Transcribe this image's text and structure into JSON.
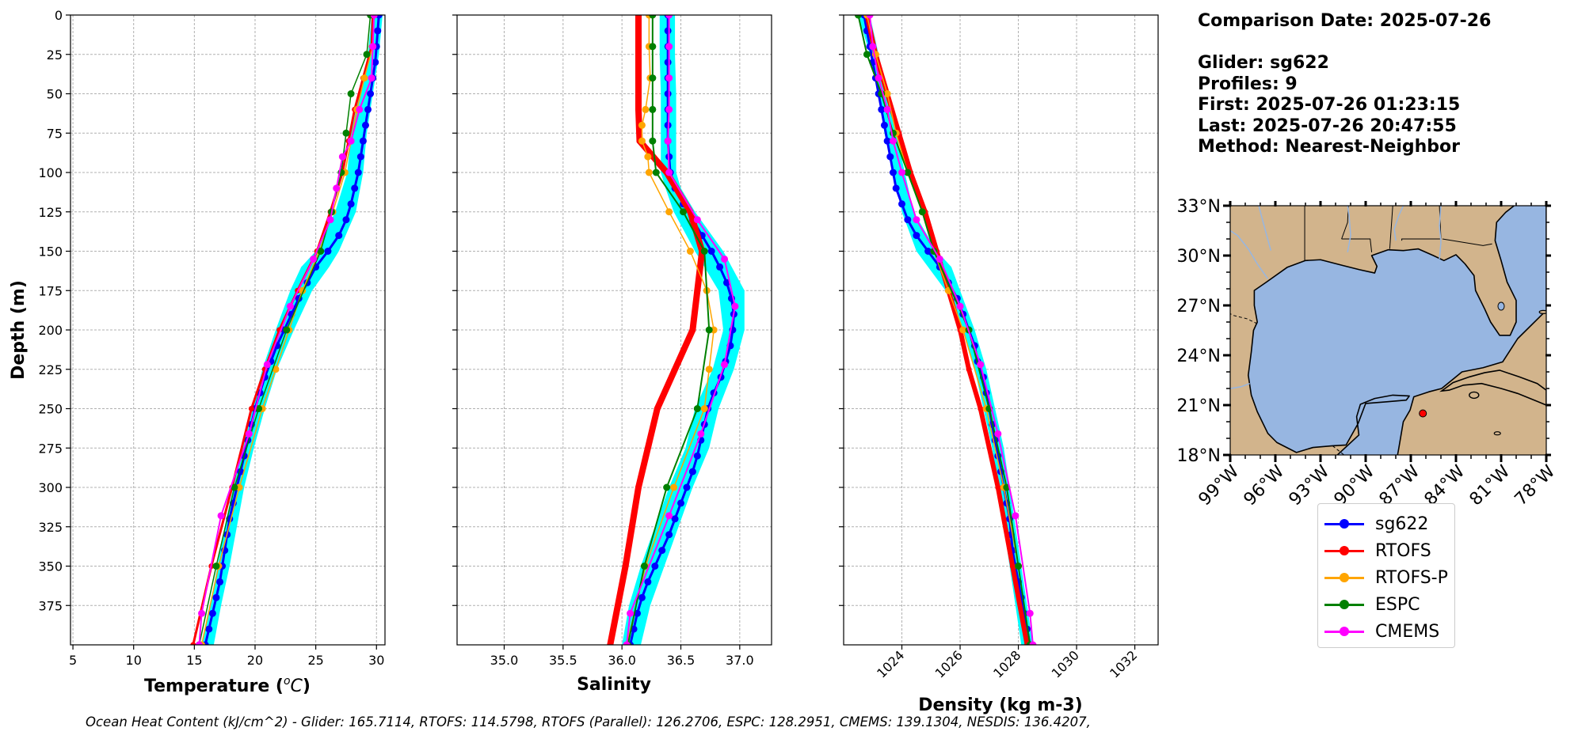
{
  "info": {
    "comparison_date": "Comparison Date: 2025-07-26",
    "glider": "Glider: sg622",
    "profiles": "Profiles: 9",
    "first": "First: 2025-07-26 01:23:15",
    "last": "Last: 2025-07-26 20:47:55",
    "method": "Method: Nearest-Neighbor"
  },
  "footer": "Ocean Heat Content (kJ/cm^2) - Glider: 165.7114,  RTOFS: 114.5798,  RTOFS (Parallel): 126.2706,  ESPC: 128.2951,  CMEMS: 139.1304,  NESDIS: 136.4207,",
  "legend": [
    {
      "name": "sg622",
      "color": "#0000ff"
    },
    {
      "name": "RTOFS",
      "color": "#ff0000"
    },
    {
      "name": "RTOFS-P",
      "color": "#ffa500"
    },
    {
      "name": "ESPC",
      "color": "#008000"
    },
    {
      "name": "CMEMS",
      "color": "#ff00ff"
    }
  ],
  "colors": {
    "glider": "#0000ff",
    "glider_spread": "#00ffff",
    "rtofs": "#ff0000",
    "rtofs_p": "#ffa500",
    "espc": "#008000",
    "cmems": "#ff00ff",
    "land": "#d2b48c",
    "ocean": "#97b6e1"
  },
  "chart_data": [
    {
      "type": "line",
      "xlabel_main": "Temperature (",
      "xlabel_sup": "o",
      "xlabel_c": "C",
      "xlabel_end": ")",
      "ylabel": "Depth (m)",
      "xlim": [
        4.8,
        30.7
      ],
      "ylim": [
        0,
        400
      ],
      "y_inverted": true,
      "grid": true,
      "xticks": [
        5,
        10,
        15,
        20,
        25,
        30
      ],
      "xticklabels": [
        "5",
        "10",
        "15",
        "20",
        "25",
        "30"
      ],
      "yticks": [
        0,
        25,
        50,
        75,
        100,
        125,
        150,
        175,
        200,
        225,
        250,
        275,
        300,
        325,
        350,
        375
      ],
      "yticklabels": [
        "0",
        "25",
        "50",
        "75",
        "100",
        "125",
        "150",
        "175",
        "200",
        "225",
        "250",
        "275",
        "300",
        "325",
        "350",
        "375"
      ],
      "spread": {
        "depth": [
          0,
          25,
          50,
          75,
          100,
          125,
          150,
          160,
          175,
          200,
          225,
          250,
          275,
          300,
          325,
          350,
          375,
          400
        ],
        "min": [
          29.6,
          29.3,
          28.6,
          27.9,
          27.6,
          26.6,
          25.0,
          23.8,
          22.9,
          21.7,
          20.6,
          19.8,
          19.0,
          18.2,
          17.5,
          16.9,
          16.3,
          15.6
        ],
        "max": [
          30.5,
          30.2,
          29.7,
          29.2,
          28.9,
          28.3,
          26.9,
          26.1,
          24.7,
          23.2,
          21.8,
          20.8,
          19.9,
          19.1,
          18.5,
          17.9,
          17.2,
          16.6
        ]
      },
      "series": [
        {
          "name": "sg622",
          "key": "glider",
          "depth": [
            0,
            10,
            20,
            30,
            40,
            50,
            60,
            70,
            80,
            90,
            100,
            110,
            120,
            130,
            140,
            150,
            160,
            170,
            180,
            190,
            200,
            210,
            220,
            230,
            240,
            250,
            260,
            270,
            280,
            290,
            300,
            310,
            320,
            330,
            340,
            350,
            360,
            370,
            380,
            390,
            400
          ],
          "x": [
            30.2,
            30.1,
            30.0,
            29.9,
            29.7,
            29.5,
            29.3,
            29.1,
            28.9,
            28.7,
            28.5,
            28.2,
            27.9,
            27.5,
            26.9,
            26.0,
            25.0,
            24.3,
            23.6,
            23.0,
            22.4,
            21.8,
            21.3,
            20.8,
            20.4,
            20.0,
            19.7,
            19.4,
            19.1,
            18.8,
            18.5,
            18.2,
            17.9,
            17.7,
            17.5,
            17.3,
            17.1,
            16.8,
            16.5,
            16.2,
            15.9
          ],
          "lw": 3,
          "ms": 9
        },
        {
          "name": "RTOFS",
          "key": "rtofs",
          "depth": [
            0,
            20,
            40,
            60,
            80,
            100,
            125,
            150,
            175,
            200,
            225,
            250,
            300,
            350,
            400
          ],
          "x": [
            29.7,
            29.6,
            28.9,
            28.2,
            27.7,
            27.2,
            26.2,
            25.1,
            23.5,
            22.0,
            20.8,
            19.7,
            18.1,
            16.4,
            14.9
          ],
          "lw": 3,
          "ms": 7
        },
        {
          "name": "RTOFS-P",
          "key": "rtofs_p",
          "depth": [
            0,
            20,
            40,
            60,
            80,
            100,
            125,
            150,
            175,
            200,
            225,
            250,
            300,
            350,
            400
          ],
          "x": [
            29.8,
            29.7,
            29.0,
            28.4,
            27.9,
            27.4,
            26.4,
            25.3,
            23.9,
            22.8,
            21.7,
            20.6,
            18.7,
            17.0,
            15.6
          ],
          "lw": 1.5,
          "ms": 9
        },
        {
          "name": "ESPC",
          "key": "espc",
          "depth": [
            0,
            25,
            50,
            75,
            100,
            125,
            150,
            200,
            250,
            300,
            350,
            400
          ],
          "x": [
            29.5,
            29.2,
            27.9,
            27.5,
            27.1,
            26.3,
            25.4,
            22.6,
            20.3,
            18.3,
            16.8,
            15.4
          ],
          "lw": 1.5,
          "ms": 9
        },
        {
          "name": "CMEMS",
          "key": "cmems",
          "depth": [
            0,
            20,
            40,
            60,
            80,
            90,
            110,
            130,
            155,
            185,
            222,
            266,
            318,
            380,
            400
          ],
          "x": [
            29.8,
            29.7,
            29.6,
            28.6,
            27.9,
            27.2,
            26.7,
            26.2,
            24.8,
            22.9,
            21.0,
            19.5,
            17.2,
            15.6,
            15.4
          ],
          "lw": 2,
          "ms": 9
        }
      ]
    },
    {
      "type": "line",
      "xlabel": "Salinity",
      "xlim": [
        34.6,
        37.27
      ],
      "ylim": [
        0,
        400
      ],
      "y_inverted": true,
      "grid": true,
      "xticks": [
        35.0,
        35.5,
        36.0,
        36.5,
        37.0
      ],
      "xticklabels": [
        "35.0",
        "35.5",
        "36.0",
        "36.5",
        "37.0"
      ],
      "yticks": [
        0,
        25,
        50,
        75,
        100,
        125,
        150,
        175,
        200,
        225,
        250,
        275,
        300,
        325,
        350,
        375
      ],
      "spread": {
        "depth": [
          0,
          25,
          50,
          75,
          100,
          110,
          125,
          150,
          175,
          200,
          225,
          250,
          275,
          300,
          325,
          350,
          375,
          400
        ],
        "min": [
          36.32,
          36.32,
          36.33,
          36.33,
          36.33,
          36.37,
          36.44,
          36.62,
          36.82,
          36.86,
          36.77,
          36.62,
          36.54,
          36.4,
          36.28,
          36.16,
          36.06,
          36.0
        ],
        "max": [
          36.45,
          36.45,
          36.46,
          36.46,
          36.46,
          36.5,
          36.62,
          36.86,
          37.04,
          37.04,
          36.95,
          36.82,
          36.74,
          36.6,
          36.48,
          36.36,
          36.24,
          36.16
        ]
      },
      "series": [
        {
          "name": "sg622",
          "key": "glider",
          "depth": [
            0,
            10,
            20,
            30,
            40,
            50,
            60,
            70,
            80,
            90,
            100,
            110,
            120,
            130,
            140,
            150,
            160,
            170,
            180,
            190,
            200,
            210,
            220,
            230,
            240,
            250,
            260,
            270,
            280,
            290,
            300,
            310,
            320,
            330,
            340,
            350,
            360,
            370,
            380,
            390,
            400
          ],
          "x": [
            36.39,
            36.39,
            36.39,
            36.39,
            36.39,
            36.39,
            36.39,
            36.39,
            36.39,
            36.4,
            36.41,
            36.45,
            36.52,
            36.6,
            36.68,
            36.76,
            36.83,
            36.89,
            36.93,
            36.95,
            36.94,
            36.92,
            36.88,
            36.84,
            36.78,
            36.73,
            36.7,
            36.67,
            36.64,
            36.6,
            36.55,
            36.5,
            36.45,
            36.4,
            36.34,
            36.28,
            36.22,
            36.17,
            36.13,
            36.1,
            36.07
          ],
          "lw": 3,
          "ms": 9
        },
        {
          "name": "RTOFS",
          "key": "rtofs",
          "depth": [
            0,
            20,
            40,
            60,
            80,
            100,
            125,
            150,
            175,
            200,
            250,
            300,
            350,
            400
          ],
          "x": [
            36.14,
            36.14,
            36.14,
            36.14,
            36.15,
            36.38,
            36.58,
            36.68,
            36.64,
            36.6,
            36.3,
            36.14,
            36.03,
            35.9
          ],
          "lw": 8,
          "ms": 8
        },
        {
          "name": "RTOFS-P",
          "key": "rtofs_p",
          "depth": [
            0,
            20,
            40,
            60,
            70,
            80,
            90,
            100,
            125,
            150,
            175,
            200,
            225,
            250,
            300,
            350,
            400
          ],
          "x": [
            36.23,
            36.23,
            36.24,
            36.2,
            36.17,
            36.17,
            36.22,
            36.23,
            36.4,
            36.58,
            36.72,
            36.78,
            36.74,
            36.7,
            36.44,
            36.2,
            36.04
          ],
          "lw": 1.5,
          "ms": 9
        },
        {
          "name": "ESPC",
          "key": "espc",
          "depth": [
            0,
            20,
            40,
            60,
            80,
            100,
            125,
            150,
            200,
            250,
            300,
            350,
            400
          ],
          "x": [
            36.26,
            36.26,
            36.26,
            36.26,
            36.26,
            36.29,
            36.52,
            36.7,
            36.74,
            36.64,
            36.38,
            36.19,
            36.05
          ],
          "lw": 2,
          "ms": 9
        },
        {
          "name": "CMEMS",
          "key": "cmems",
          "depth": [
            0,
            20,
            40,
            60,
            80,
            100,
            130,
            155,
            185,
            222,
            266,
            318,
            380,
            400
          ],
          "x": [
            36.4,
            36.4,
            36.4,
            36.4,
            36.39,
            36.4,
            36.64,
            36.87,
            36.96,
            36.87,
            36.67,
            36.4,
            36.07,
            36.04
          ],
          "lw": 2,
          "ms": 9
        }
      ]
    },
    {
      "type": "line",
      "xlabel": "Density (kg m-3)",
      "xlim": [
        1022.0,
        1032.8
      ],
      "ylim": [
        0,
        400
      ],
      "y_inverted": true,
      "grid": true,
      "xticks": [
        1024,
        1026,
        1028,
        1030,
        1032
      ],
      "xticklabels": [
        "1024",
        "1026",
        "1028",
        "1030",
        "1032"
      ],
      "yticks": [
        0,
        25,
        50,
        75,
        100,
        125,
        150,
        175,
        200,
        225,
        250,
        275,
        300,
        325,
        350,
        375
      ],
      "spread": {
        "depth": [
          0,
          25,
          50,
          75,
          100,
          125,
          150,
          160,
          175,
          200,
          225,
          250,
          275,
          300,
          325,
          350,
          375,
          400
        ],
        "min": [
          1022.5,
          1022.9,
          1023.2,
          1023.4,
          1023.7,
          1024.0,
          1024.5,
          1024.9,
          1025.5,
          1026.1,
          1026.5,
          1026.8,
          1027.1,
          1027.3,
          1027.5,
          1027.7,
          1027.9,
          1028.1
        ],
        "max": [
          1022.9,
          1023.2,
          1023.5,
          1023.8,
          1024.1,
          1024.4,
          1025.2,
          1025.7,
          1026.0,
          1026.5,
          1026.9,
          1027.2,
          1027.5,
          1027.7,
          1027.9,
          1028.1,
          1028.3,
          1028.5
        ]
      },
      "series": [
        {
          "name": "sg622",
          "key": "glider",
          "depth": [
            0,
            10,
            20,
            30,
            40,
            50,
            60,
            70,
            80,
            90,
            100,
            110,
            120,
            130,
            140,
            150,
            160,
            170,
            180,
            190,
            200,
            210,
            220,
            230,
            240,
            250,
            260,
            270,
            280,
            290,
            300,
            310,
            320,
            330,
            340,
            350,
            360,
            370,
            380,
            390,
            400
          ],
          "x": [
            1022.7,
            1022.8,
            1022.9,
            1023.0,
            1023.1,
            1023.2,
            1023.3,
            1023.4,
            1023.5,
            1023.6,
            1023.7,
            1023.8,
            1024.0,
            1024.2,
            1024.5,
            1024.9,
            1025.3,
            1025.6,
            1025.9,
            1026.1,
            1026.3,
            1026.5,
            1026.6,
            1026.8,
            1026.9,
            1027.0,
            1027.1,
            1027.2,
            1027.3,
            1027.4,
            1027.5,
            1027.6,
            1027.7,
            1027.75,
            1027.8,
            1027.9,
            1028.0,
            1028.1,
            1028.2,
            1028.3,
            1028.4
          ],
          "lw": 3,
          "ms": 9
        },
        {
          "name": "RTOFS",
          "key": "rtofs",
          "depth": [
            0,
            25,
            50,
            75,
            100,
            125,
            150,
            175,
            200,
            225,
            250,
            300,
            350,
            400
          ],
          "x": [
            1022.8,
            1023.1,
            1023.5,
            1023.9,
            1024.3,
            1024.8,
            1025.2,
            1025.6,
            1026.0,
            1026.3,
            1026.7,
            1027.3,
            1027.8,
            1028.3
          ],
          "lw": 6,
          "ms": 7
        },
        {
          "name": "RTOFS-P",
          "key": "rtofs_p",
          "depth": [
            0,
            25,
            50,
            75,
            100,
            125,
            150,
            175,
            200,
            250,
            300,
            350,
            400
          ],
          "x": [
            1022.8,
            1023.1,
            1023.5,
            1023.8,
            1024.2,
            1024.7,
            1025.1,
            1025.6,
            1026.1,
            1026.9,
            1027.5,
            1028.0,
            1028.4
          ],
          "lw": 1.5,
          "ms": 9
        },
        {
          "name": "ESPC",
          "key": "espc",
          "depth": [
            0,
            25,
            50,
            75,
            100,
            125,
            150,
            200,
            250,
            300,
            350,
            400
          ],
          "x": [
            1022.5,
            1022.8,
            1023.3,
            1023.7,
            1024.2,
            1024.7,
            1025.1,
            1026.3,
            1027.0,
            1027.6,
            1028.0,
            1028.4
          ],
          "lw": 2,
          "ms": 9
        },
        {
          "name": "CMEMS",
          "key": "cmems",
          "depth": [
            0,
            20,
            40,
            60,
            80,
            100,
            130,
            155,
            185,
            222,
            266,
            318,
            380,
            400
          ],
          "x": [
            1022.9,
            1023.0,
            1023.2,
            1023.5,
            1023.7,
            1024.0,
            1024.5,
            1025.3,
            1026.0,
            1026.7,
            1027.3,
            1027.9,
            1028.4,
            1028.5
          ],
          "lw": 2,
          "ms": 9
        }
      ]
    }
  ],
  "map": {
    "xlim": [
      -99,
      -78
    ],
    "ylim": [
      18,
      33
    ],
    "xticks": [
      -99,
      -96,
      -93,
      -90,
      -87,
      -84,
      -81,
      -78
    ],
    "xticklabels": [
      "99°W",
      "96°W",
      "93°W",
      "90°W",
      "87°W",
      "84°W",
      "81°W",
      "78°W"
    ],
    "yticks": [
      18,
      21,
      24,
      27,
      30,
      33
    ],
    "yticklabels": [
      "18°N",
      "21°N",
      "24°N",
      "27°N",
      "30°N",
      "33°N"
    ],
    "glider_position": [
      -86.2,
      20.5
    ]
  }
}
